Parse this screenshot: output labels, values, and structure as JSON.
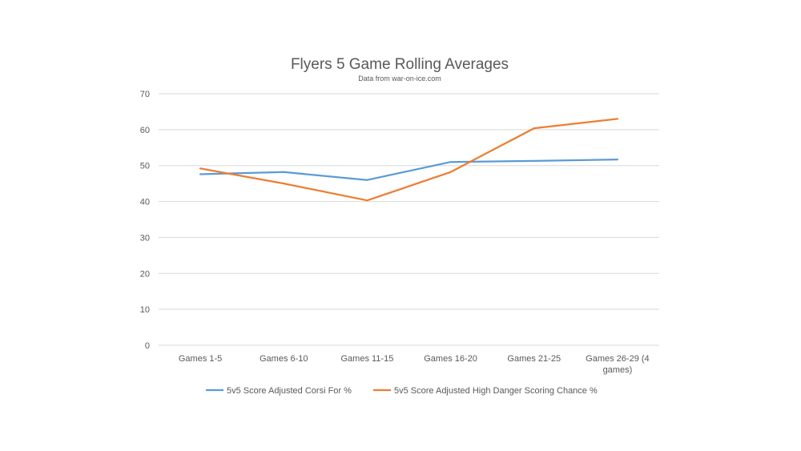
{
  "chart_data": {
    "type": "line",
    "title": "Flyers 5 Game Rolling Averages",
    "subtitle": "Data from war-on-ice.com",
    "categories": [
      "Games 1-5",
      "Games 6-10",
      "Games 11-15",
      "Games 16-20",
      "Games 21-25",
      "Games 26-29 (4 games)"
    ],
    "category_lines": [
      [
        "Games 1-5"
      ],
      [
        "Games 6-10"
      ],
      [
        "Games 11-15"
      ],
      [
        "Games 16-20"
      ],
      [
        "Games 21-25"
      ],
      [
        "Games 26-29 (4",
        "games)"
      ]
    ],
    "ylim": [
      0,
      70
    ],
    "yticks": [
      "0",
      "10",
      "20",
      "30",
      "40",
      "50",
      "60",
      "70"
    ],
    "grid": true,
    "legend_position": "bottom",
    "series": [
      {
        "name": "5v5 Score Adjusted Corsi For %",
        "color": "#5b9bd5",
        "values": [
          47.6,
          48.2,
          46.0,
          51.0,
          51.3,
          51.7
        ]
      },
      {
        "name": "5v5 Score Adjusted High Danger Scoring Chance %",
        "color": "#ed7d31",
        "values": [
          49.2,
          45.0,
          40.3,
          48.2,
          60.4,
          63.0
        ]
      }
    ]
  }
}
